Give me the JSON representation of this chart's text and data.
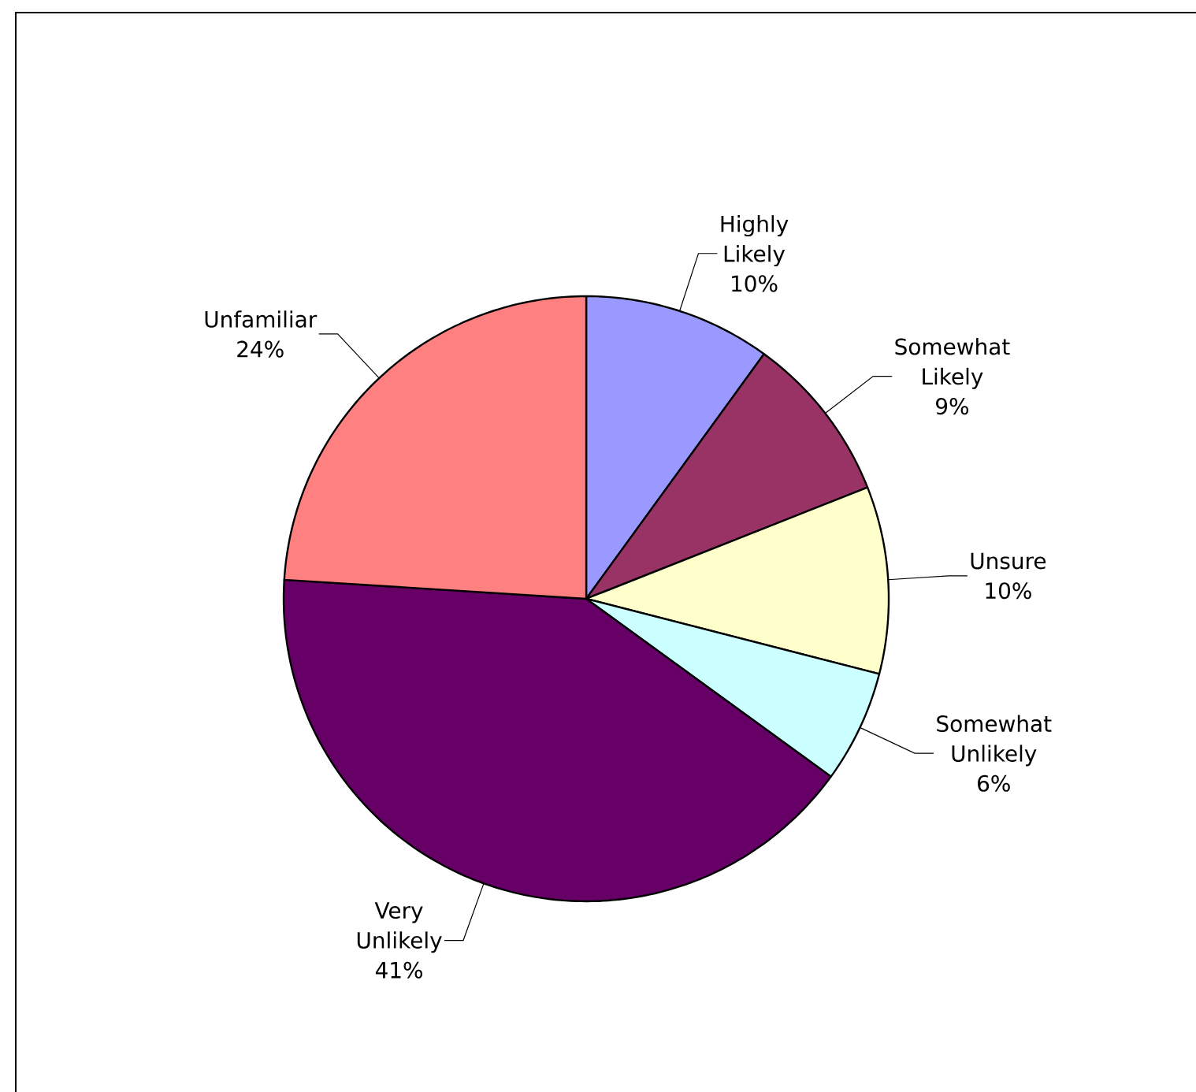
{
  "chart_data": {
    "type": "pie",
    "categories": [
      "Highly Likely",
      "Somewhat Likely",
      "Unsure",
      "Somewhat Unlikely",
      "Very Unlikely",
      "Unfamiliar"
    ],
    "values": [
      10,
      9,
      10,
      6,
      41,
      24
    ],
    "value_labels": [
      "10%",
      "9%",
      "10%",
      "6%",
      "41%",
      "24%"
    ],
    "colors": [
      "#9999ff",
      "#993366",
      "#ffffcc",
      "#ccffff",
      "#660066",
      "#ff8080"
    ]
  }
}
